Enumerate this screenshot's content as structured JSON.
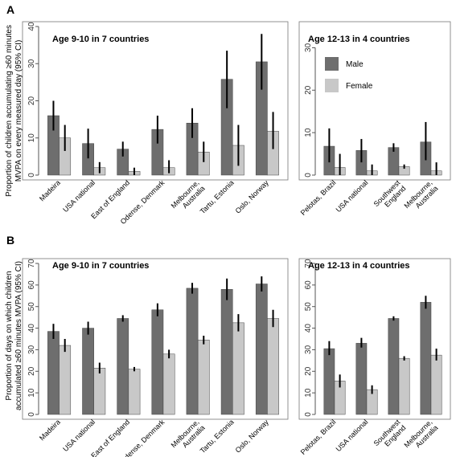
{
  "colors": {
    "male": "#6e6e6e",
    "female": "#c8c8c8",
    "axis": "#555555",
    "errorbar": "#000000"
  },
  "panels": [
    {
      "letter": "A",
      "ylabel_lines": [
        "Proportion of children accumulating ≥60 minutes",
        "MVPA on every measured day (95% CI)"
      ]
    },
    {
      "letter": "B",
      "ylabel_lines": [
        "Proportion of days on which children",
        "accumulated ≥60 minutes MVPA (95% CI)"
      ]
    }
  ],
  "legend": {
    "male": "Male",
    "female": "Female"
  },
  "chart_data": [
    {
      "type": "bar",
      "panel": "A",
      "title": "Age 9-10 in 7 countries",
      "categories": [
        [
          "Madeira"
        ],
        [
          "USA national"
        ],
        [
          "East of England"
        ],
        [
          "Odense, Denmark"
        ],
        [
          "Melbourne,",
          "Australia"
        ],
        [
          "Tartu, Estonia"
        ],
        [
          "Oslo, Norway"
        ]
      ],
      "series": [
        {
          "name": "Male",
          "values": [
            16,
            8.5,
            7,
            12.3,
            14,
            25.8,
            30.5
          ],
          "ci_low": [
            12,
            4.5,
            5,
            8.5,
            10,
            18,
            23
          ],
          "ci_high": [
            20,
            12.5,
            9,
            16,
            18,
            33.5,
            38
          ]
        },
        {
          "name": "Female",
          "values": [
            10,
            2,
            1,
            2,
            6.2,
            8,
            11.8
          ],
          "ci_low": [
            6.5,
            0.5,
            0,
            0.5,
            3.5,
            2.5,
            7
          ],
          "ci_high": [
            13.5,
            3.5,
            2,
            4,
            9,
            13.5,
            17
          ]
        }
      ],
      "ylim": [
        0,
        40
      ],
      "yticks": [
        0,
        10,
        20,
        30,
        40
      ]
    },
    {
      "type": "bar",
      "panel": "A",
      "title": "Age 12-13 in 4 countries",
      "categories": [
        [
          "Pelotas, Brazil"
        ],
        [
          "USA national"
        ],
        [
          "Southwest",
          "England"
        ],
        [
          "Melbourne,",
          "Australia"
        ]
      ],
      "series": [
        {
          "name": "Male",
          "values": [
            6.8,
            5.8,
            6.5,
            7.8
          ],
          "ci_low": [
            3,
            3,
            5.5,
            3.5
          ],
          "ci_high": [
            11,
            8.5,
            7.5,
            12.5
          ]
        },
        {
          "name": "Female",
          "values": [
            1.8,
            1,
            2,
            1
          ],
          "ci_low": [
            0,
            0,
            1.5,
            0
          ],
          "ci_high": [
            5,
            2.5,
            2.5,
            3
          ]
        }
      ],
      "ylim": [
        0,
        35
      ],
      "yticks": [
        0,
        10,
        20,
        30
      ]
    },
    {
      "type": "bar",
      "panel": "B",
      "title": "Age 9-10 in 7 countries",
      "categories": [
        [
          "Madeira"
        ],
        [
          "USA national"
        ],
        [
          "East of England"
        ],
        [
          "Odense, Denmark"
        ],
        [
          "Melbourne,",
          "Australia"
        ],
        [
          "Tartu, Estonia"
        ],
        [
          "Oslo, Norway"
        ]
      ],
      "series": [
        {
          "name": "Male",
          "values": [
            38.5,
            40,
            44.5,
            48.5,
            58.5,
            58,
            60.5
          ],
          "ci_low": [
            35,
            37,
            43,
            45.5,
            56,
            53,
            57
          ],
          "ci_high": [
            42,
            43,
            46,
            51.5,
            61,
            63,
            64
          ]
        },
        {
          "name": "Female",
          "values": [
            32,
            21.5,
            21,
            28,
            34.5,
            42.5,
            44.5
          ],
          "ci_low": [
            29,
            19,
            20,
            26,
            32.5,
            38.5,
            40.5
          ],
          "ci_high": [
            35,
            24,
            22,
            30,
            36.5,
            46.5,
            48.5
          ]
        }
      ],
      "ylim": [
        0,
        70
      ],
      "yticks": [
        0,
        10,
        20,
        30,
        40,
        50,
        60,
        70
      ]
    },
    {
      "type": "bar",
      "panel": "B",
      "title": "Age 12-13 in 4 countries",
      "categories": [
        [
          "Pelotas, Brazil"
        ],
        [
          "USA national"
        ],
        [
          "Southwest",
          "England"
        ],
        [
          "Melbourne,",
          "Australia"
        ]
      ],
      "series": [
        {
          "name": "Male",
          "values": [
            30.5,
            33,
            44.5,
            52
          ],
          "ci_low": [
            27.5,
            31,
            43.5,
            49
          ],
          "ci_high": [
            34,
            35.5,
            45.5,
            55
          ]
        },
        {
          "name": "Female",
          "values": [
            15.5,
            11.5,
            26,
            27.5
          ],
          "ci_low": [
            12.5,
            9.5,
            25,
            25
          ],
          "ci_high": [
            18.5,
            13.5,
            27,
            30.5
          ]
        }
      ],
      "ylim": [
        0,
        70
      ],
      "yticks": [
        0,
        10,
        20,
        30,
        40,
        50,
        60,
        70
      ]
    }
  ]
}
